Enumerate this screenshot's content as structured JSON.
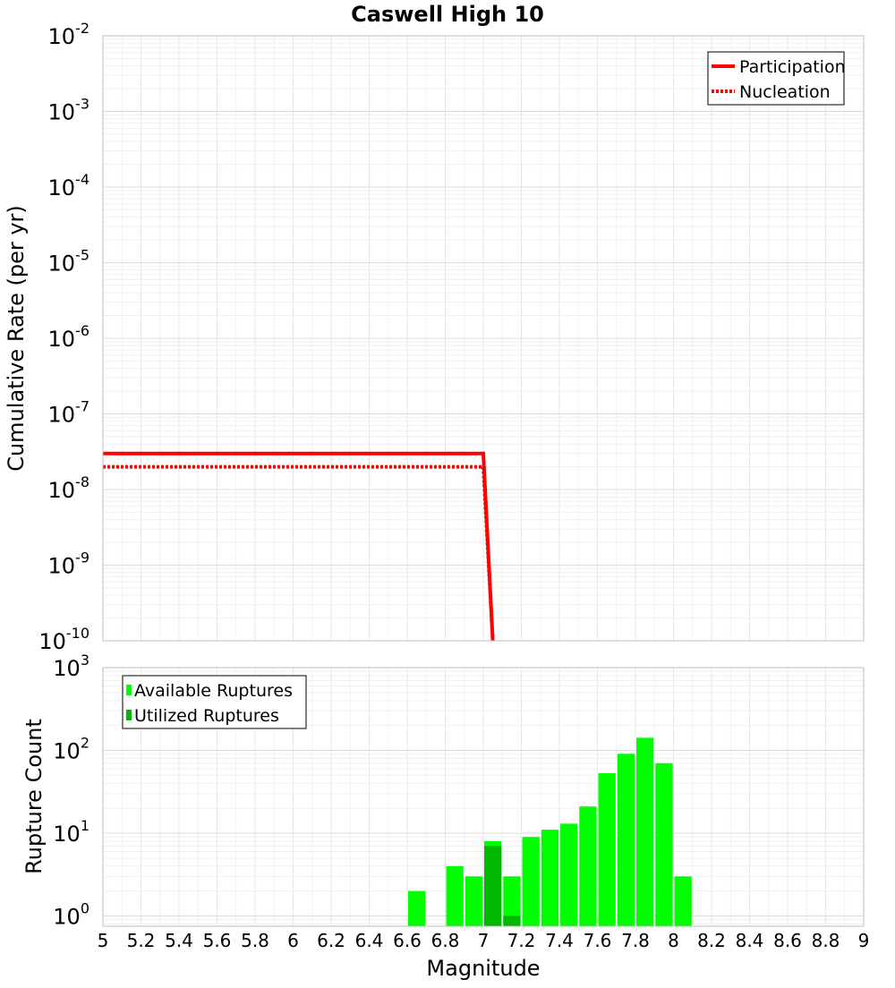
{
  "chart_data": [
    {
      "type": "line",
      "title": "Caswell High 10",
      "xlabel": "",
      "ylabel": "Cumulative Rate (per yr)",
      "xlim": [
        5,
        9
      ],
      "ylim": [
        1e-10,
        0.01
      ],
      "yscale": "log",
      "ytick_exponents": [
        "-2",
        "-3",
        "-4",
        "-5",
        "-6",
        "-7",
        "-8",
        "-9",
        "-10"
      ],
      "ytick_base": "10",
      "grid": true,
      "legend": "top-right",
      "series": [
        {
          "name": "Participation",
          "style": "solid",
          "color": "#ff0000",
          "points": [
            [
              5.0,
              3e-08
            ],
            [
              7.0,
              3e-08
            ],
            [
              7.05,
              1e-10
            ]
          ]
        },
        {
          "name": "Nucleation",
          "style": "dotted",
          "color": "#ff0000",
          "points": [
            [
              5.0,
              2e-08
            ],
            [
              7.0,
              2e-08
            ],
            [
              7.05,
              1e-10
            ]
          ]
        }
      ]
    },
    {
      "type": "bar",
      "xlabel": "Magnitude",
      "ylabel": "Rupture Count",
      "xlim": [
        5,
        9
      ],
      "ylim": [
        0.75,
        1000
      ],
      "yscale": "log",
      "ytick_exponents": [
        "3",
        "2",
        "1",
        "0"
      ],
      "ytick_base": "10",
      "xticks": [
        "5",
        "5.2",
        "5.4",
        "5.6",
        "5.8",
        "6",
        "6.2",
        "6.4",
        "6.6",
        "6.8",
        "7",
        "7.2",
        "7.4",
        "7.6",
        "7.8",
        "8",
        "8.2",
        "8.4",
        "8.6",
        "8.8",
        "9"
      ],
      "grid": true,
      "legend": "top-left",
      "bin_width": 0.1,
      "series": [
        {
          "name": "Available Ruptures",
          "color": "#00ff00",
          "x": [
            6.65,
            6.85,
            6.95,
            7.05,
            7.15,
            7.25,
            7.35,
            7.45,
            7.55,
            7.65,
            7.75,
            7.85,
            7.95,
            8.05
          ],
          "values": [
            2,
            4,
            3,
            8,
            3,
            9,
            11,
            13,
            21,
            53,
            91,
            142,
            70,
            3
          ]
        },
        {
          "name": "Utilized Ruptures",
          "color": "#00b800",
          "x": [
            7.05,
            7.15
          ],
          "values": [
            7,
            1
          ]
        }
      ]
    }
  ]
}
